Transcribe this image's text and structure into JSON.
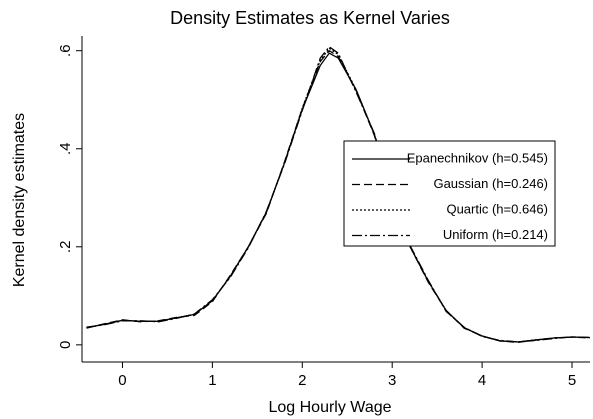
{
  "chart_data": {
    "type": "line",
    "title": "Density Estimates as Kernel Varies",
    "xlabel": "Log Hourly Wage",
    "ylabel": "Kernel density estimates",
    "x": [
      -0.4,
      -0.2,
      0,
      0.2,
      0.4,
      0.6,
      0.8,
      1.0,
      1.2,
      1.4,
      1.6,
      1.8,
      2.0,
      2.2,
      2.3,
      2.4,
      2.6,
      2.8,
      3.0,
      3.2,
      3.4,
      3.6,
      3.8,
      4.0,
      4.2,
      4.4,
      4.6,
      4.8,
      5.0,
      5.2
    ],
    "series": [
      {
        "name": "Epanechnikov (h=0.545)",
        "color": "#000000",
        "dash": "none",
        "values": [
          0.035,
          0.042,
          0.05,
          0.048,
          0.048,
          0.055,
          0.062,
          0.09,
          0.14,
          0.2,
          0.27,
          0.37,
          0.48,
          0.57,
          0.595,
          0.585,
          0.52,
          0.43,
          0.31,
          0.2,
          0.13,
          0.07,
          0.035,
          0.018,
          0.008,
          0.006,
          0.01,
          0.014,
          0.016,
          0.015
        ]
      },
      {
        "name": "Gaussian (h=0.246)",
        "color": "#000000",
        "dash": "8 4",
        "values": [
          0.034,
          0.043,
          0.051,
          0.047,
          0.049,
          0.056,
          0.06,
          0.088,
          0.142,
          0.2,
          0.268,
          0.372,
          0.482,
          0.578,
          0.6,
          0.588,
          0.518,
          0.428,
          0.312,
          0.2,
          0.128,
          0.07,
          0.034,
          0.018,
          0.008,
          0.005,
          0.01,
          0.014,
          0.016,
          0.014
        ]
      },
      {
        "name": "Quartic (h=0.646)",
        "color": "#000000",
        "dash": "2 2",
        "values": [
          0.035,
          0.042,
          0.05,
          0.048,
          0.048,
          0.055,
          0.062,
          0.09,
          0.14,
          0.2,
          0.27,
          0.37,
          0.483,
          0.58,
          0.605,
          0.592,
          0.52,
          0.43,
          0.31,
          0.2,
          0.13,
          0.07,
          0.035,
          0.018,
          0.008,
          0.006,
          0.01,
          0.014,
          0.016,
          0.015
        ]
      },
      {
        "name": "Uniform (h=0.214)",
        "color": "#000000",
        "dash": "10 3 2 3",
        "values": [
          0.036,
          0.041,
          0.049,
          0.049,
          0.047,
          0.054,
          0.063,
          0.092,
          0.138,
          0.198,
          0.272,
          0.368,
          0.478,
          0.585,
          0.608,
          0.595,
          0.515,
          0.432,
          0.308,
          0.202,
          0.132,
          0.068,
          0.036,
          0.017,
          0.009,
          0.006,
          0.009,
          0.013,
          0.016,
          0.015
        ]
      }
    ],
    "xlim": [
      -0.45,
      5.2
    ],
    "ylim": [
      -0.035,
      0.63
    ],
    "xticks": [
      0,
      1,
      2,
      3,
      4,
      5
    ],
    "yticks": [
      0,
      {
        "value": 0.2,
        "label": ".2"
      },
      {
        "value": 0.4,
        "label": ".4"
      },
      {
        "value": 0.6,
        "label": ".6"
      }
    ]
  }
}
